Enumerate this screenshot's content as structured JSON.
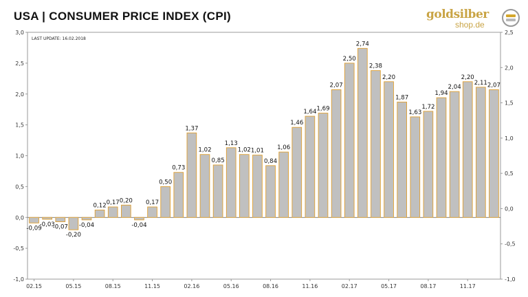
{
  "header": {
    "title": "USA | CONSUMER PRICE INDEX (CPI)",
    "logo_brand": "goldsilber",
    "logo_sub": "shop.de",
    "logo_icon": "gold-bars-icon"
  },
  "chart_data": {
    "type": "bar",
    "note": "LAST UPDATE: 16.02.2018",
    "categories": [
      "02.15",
      "03.15",
      "04.15",
      "05.15",
      "06.15",
      "07.15",
      "08.15",
      "09.15",
      "10.15",
      "11.15",
      "12.15",
      "01.16",
      "02.16",
      "03.16",
      "04.16",
      "05.16",
      "06.16",
      "07.16",
      "08.16",
      "09.16",
      "10.16",
      "11.16",
      "12.16",
      "01.17",
      "02.17",
      "03.17",
      "04.17",
      "05.17",
      "06.17",
      "07.17",
      "08.17",
      "09.17",
      "10.17",
      "11.17",
      "12.17",
      "01.18"
    ],
    "values": [
      -0.09,
      -0.03,
      -0.07,
      -0.2,
      -0.04,
      0.12,
      0.17,
      0.2,
      -0.04,
      0.17,
      0.5,
      0.73,
      1.37,
      1.02,
      0.85,
      1.13,
      1.02,
      1.01,
      0.84,
      1.06,
      1.46,
      1.64,
      1.69,
      2.07,
      2.5,
      2.74,
      2.38,
      2.2,
      1.87,
      1.63,
      1.72,
      1.94,
      2.04,
      2.2,
      2.11,
      2.07
    ],
    "value_labels": [
      "-0,09",
      "-0,03",
      "-0,07",
      "-0,20",
      "-0,04",
      "0,12",
      "0,17",
      "0,20",
      "-0,04",
      "0,17",
      "0,50",
      "0,73",
      "1,37",
      "1,02",
      "0,85",
      "1,13",
      "1,02",
      "1,01",
      "0,84",
      "1,06",
      "1,46",
      "1,64",
      "1,69",
      "2,07",
      "2,50",
      "2,74",
      "2,38",
      "2,20",
      "1,87",
      "1,63",
      "1,72",
      "1,94",
      "2,04",
      "2,20",
      "2,11",
      "2,07"
    ],
    "x_tick_labels": [
      "02.15",
      "05.15",
      "08.15",
      "11.15",
      "02.16",
      "05.16",
      "08.16",
      "11.16",
      "02.17",
      "05.17",
      "08.17",
      "11.17"
    ],
    "x_tick_every": 3,
    "ylim": [
      -1.0,
      3.0
    ],
    "y_ticks": [
      "-1,0",
      "-0,5",
      "0,0",
      "0,5",
      "1,0",
      "1,5",
      "2,0",
      "2,5",
      "3,0"
    ],
    "y_tick_values": [
      -1.0,
      -0.5,
      0.0,
      0.5,
      1.0,
      1.5,
      2.0,
      2.5,
      3.0
    ],
    "y2lim": [
      -1.0,
      2.5
    ],
    "y2_ticks": [
      "-1,0",
      "-0,5",
      "0,0",
      "0,5",
      "1,0",
      "1,5",
      "2,0",
      "2,5"
    ],
    "y2_tick_values": [
      -1.0,
      -0.5,
      0.0,
      0.5,
      1.0,
      1.5,
      2.0,
      2.5
    ],
    "grid": false,
    "legend": "none",
    "colors": {
      "bar_fill": "#c0c0c0",
      "bar_border": "#e0a030",
      "axis": "#999999",
      "zero_line": "#555555"
    }
  }
}
